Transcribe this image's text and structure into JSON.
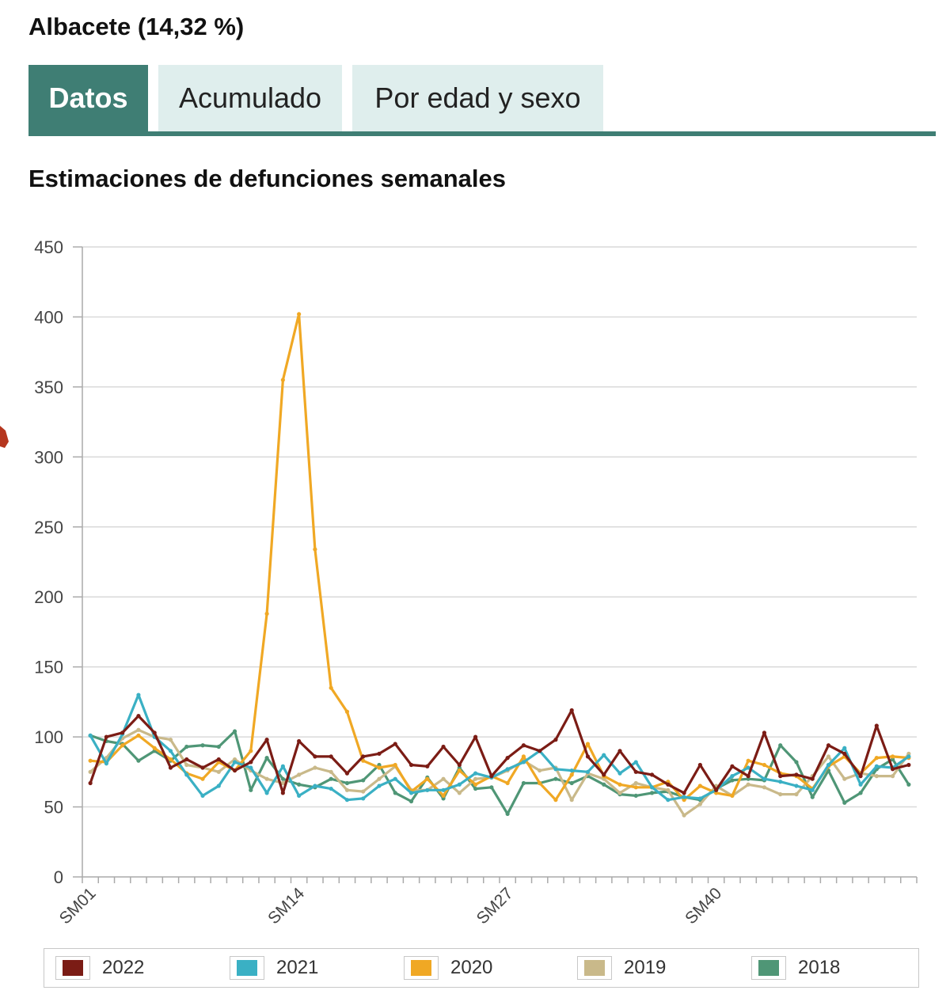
{
  "header": {
    "title": "Albacete (14,32 %)"
  },
  "tabs": [
    {
      "label": "Datos",
      "active": true
    },
    {
      "label": "Acumulado",
      "active": false
    },
    {
      "label": "Por edad y sexo",
      "active": false
    }
  ],
  "colors": {
    "accent": "#3f7e74",
    "tab_bg": "#dfeeed",
    "grid": "#d9d9d9",
    "axis": "#aaaaaa"
  },
  "chart_data": {
    "type": "line",
    "title": "Estimaciones de defunciones semanales",
    "xlabel": "",
    "ylabel": "",
    "ylim": [
      0,
      450
    ],
    "yticks": [
      0,
      50,
      100,
      150,
      200,
      250,
      300,
      350,
      400,
      450
    ],
    "grid": true,
    "legend_position": "bottom",
    "xtick_labels": [
      "SM01",
      "SM14",
      "SM27",
      "SM40"
    ],
    "x": [
      "SM01",
      "SM02",
      "SM03",
      "SM04",
      "SM05",
      "SM06",
      "SM07",
      "SM08",
      "SM09",
      "SM10",
      "SM11",
      "SM12",
      "SM13",
      "SM14",
      "SM15",
      "SM16",
      "SM17",
      "SM18",
      "SM19",
      "SM20",
      "SM21",
      "SM22",
      "SM23",
      "SM24",
      "SM25",
      "SM26",
      "SM27",
      "SM28",
      "SM29",
      "SM30",
      "SM31",
      "SM32",
      "SM33",
      "SM34",
      "SM35",
      "SM36",
      "SM37",
      "SM38",
      "SM39",
      "SM40",
      "SM41",
      "SM42",
      "SM43",
      "SM44",
      "SM45",
      "SM46",
      "SM47",
      "SM48",
      "SM49",
      "SM50",
      "SM51",
      "SM52"
    ],
    "series": [
      {
        "name": "2022",
        "color": "#7b1c15",
        "values": [
          67,
          100,
          103,
          115,
          103,
          78,
          84,
          78,
          84,
          76,
          82,
          98,
          60,
          97,
          86,
          86,
          74,
          86,
          88,
          95,
          80,
          79,
          93,
          80,
          100,
          72,
          85,
          94,
          90,
          98,
          119,
          86,
          73,
          90,
          75,
          73,
          66,
          60,
          80,
          62,
          79,
          72,
          103,
          72,
          73,
          70,
          94,
          88,
          72,
          108,
          77,
          80
        ]
      },
      {
        "name": "2021",
        "color": "#3ab0c4",
        "values": [
          101,
          81,
          102,
          130,
          100,
          90,
          73,
          58,
          65,
          82,
          78,
          60,
          79,
          58,
          65,
          63,
          55,
          56,
          65,
          70,
          60,
          62,
          62,
          66,
          74,
          71,
          77,
          82,
          90,
          77,
          76,
          75,
          87,
          74,
          82,
          64,
          55,
          57,
          56,
          62,
          72,
          78,
          70,
          68,
          65,
          62,
          80,
          92,
          66,
          79,
          78,
          86
        ]
      },
      {
        "name": "2020",
        "color": "#f0a824",
        "values": [
          83,
          82,
          94,
          101,
          92,
          84,
          74,
          70,
          82,
          76,
          90,
          188,
          355,
          402,
          234,
          135,
          118,
          83,
          78,
          80,
          61,
          70,
          58,
          76,
          66,
          72,
          67,
          86,
          67,
          55,
          73,
          95,
          72,
          66,
          64,
          64,
          68,
          55,
          65,
          60,
          58,
          83,
          80,
          74,
          72,
          63,
          79,
          86,
          74,
          85,
          86,
          85
        ]
      },
      {
        "name": "2019",
        "color": "#c9b98a",
        "values": [
          75,
          85,
          99,
          105,
          100,
          98,
          80,
          78,
          75,
          84,
          76,
          70,
          67,
          73,
          78,
          75,
          62,
          61,
          70,
          79,
          62,
          62,
          70,
          60,
          70,
          71,
          76,
          83,
          76,
          78,
          55,
          74,
          70,
          60,
          67,
          64,
          62,
          44,
          52,
          65,
          58,
          66,
          64,
          59,
          59,
          72,
          86,
          70,
          74,
          72,
          72,
          88
        ]
      },
      {
        "name": "2018",
        "color": "#4f9676",
        "values": [
          101,
          97,
          95,
          83,
          90,
          83,
          93,
          94,
          93,
          104,
          62,
          85,
          70,
          66,
          64,
          70,
          67,
          69,
          80,
          60,
          54,
          71,
          56,
          78,
          63,
          64,
          45,
          67,
          67,
          70,
          67,
          72,
          66,
          59,
          58,
          60,
          61,
          57,
          55,
          63,
          69,
          70,
          69,
          94,
          82,
          57,
          76,
          53,
          60,
          77,
          84,
          66
        ]
      }
    ]
  }
}
